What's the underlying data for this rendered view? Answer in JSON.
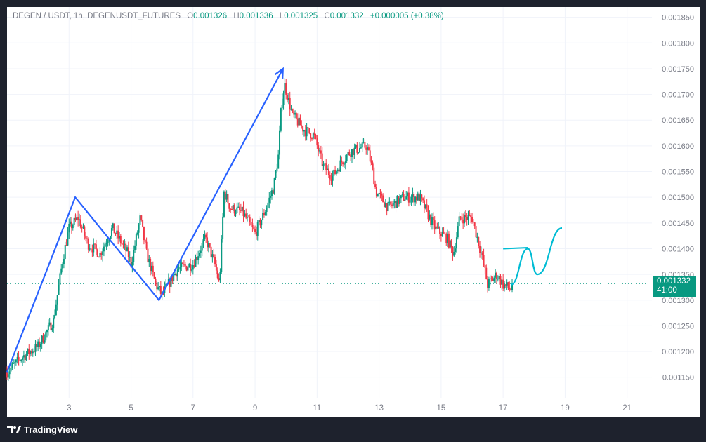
{
  "legend": {
    "symbol": "DEGEN / USDT, 1h, DEGENUSDT_FUTURES",
    "o_key": "O",
    "o_val": "0.001326",
    "h_key": "H",
    "h_val": "0.001336",
    "l_key": "L",
    "l_val": "0.001325",
    "c_key": "C",
    "c_val": "0.001332",
    "change": "+0.000005 (+0.38%)"
  },
  "price_tag": {
    "price": "0.001332",
    "countdown": "41:00"
  },
  "footer": {
    "brand": "TradingView"
  },
  "colors": {
    "up": "#089981",
    "down": "#f23645",
    "trend_line": "#2962ff",
    "projection": "#00bcd4",
    "grid": "#f0f3fa",
    "axis_text": "#787b86"
  },
  "chart_data": {
    "type": "candlestick",
    "x_axis": {
      "min": 1.0,
      "max": 21.8,
      "ticks": [
        "3",
        "5",
        "7",
        "9",
        "11",
        "13",
        "15",
        "17",
        "19",
        "21"
      ]
    },
    "y_axis": {
      "min": 0.00111,
      "max": 0.00187,
      "ticks": [
        "0.001150",
        "0.001200",
        "0.001250",
        "0.001300",
        "0.001350",
        "0.001400",
        "0.001450",
        "0.001500",
        "0.001550",
        "0.001600",
        "0.001650",
        "0.001700",
        "0.001750",
        "0.001800",
        "0.001850"
      ]
    },
    "price_path": [
      [
        1.0,
        0.00116
      ],
      [
        1.5,
        0.00119
      ],
      [
        2.0,
        0.00121
      ],
      [
        2.5,
        0.00126
      ],
      [
        2.8,
        0.00138
      ],
      [
        3.0,
        0.00144
      ],
      [
        3.3,
        0.00146
      ],
      [
        3.6,
        0.00141
      ],
      [
        4.0,
        0.00139
      ],
      [
        4.4,
        0.00144
      ],
      [
        4.9,
        0.00139
      ],
      [
        5.0,
        0.00137
      ],
      [
        5.3,
        0.00146
      ],
      [
        5.5,
        0.00139
      ],
      [
        5.8,
        0.00133
      ],
      [
        6.0,
        0.00131
      ],
      [
        6.5,
        0.00136
      ],
      [
        7.0,
        0.00137
      ],
      [
        7.4,
        0.00142
      ],
      [
        7.7,
        0.00137
      ],
      [
        7.85,
        0.00133
      ],
      [
        8.0,
        0.00151
      ],
      [
        8.2,
        0.00148
      ],
      [
        8.6,
        0.00147
      ],
      [
        9.0,
        0.00143
      ],
      [
        9.3,
        0.00147
      ],
      [
        9.6,
        0.00152
      ],
      [
        9.75,
        0.00158
      ],
      [
        9.85,
        0.00168
      ],
      [
        9.95,
        0.00172
      ],
      [
        10.2,
        0.00166
      ],
      [
        10.6,
        0.00163
      ],
      [
        10.9,
        0.00162
      ],
      [
        11.2,
        0.00156
      ],
      [
        11.5,
        0.00154
      ],
      [
        11.8,
        0.00157
      ],
      [
        12.1,
        0.00159
      ],
      [
        12.6,
        0.0016
      ],
      [
        12.8,
        0.00155
      ],
      [
        12.9,
        0.00151
      ],
      [
        13.3,
        0.00148
      ],
      [
        13.8,
        0.0015
      ],
      [
        14.3,
        0.0015
      ],
      [
        14.8,
        0.00144
      ],
      [
        15.2,
        0.00142
      ],
      [
        15.4,
        0.00139
      ],
      [
        15.6,
        0.00146
      ],
      [
        16.0,
        0.00146
      ],
      [
        16.3,
        0.00139
      ],
      [
        16.5,
        0.00133
      ],
      [
        16.8,
        0.00135
      ],
      [
        17.0,
        0.00133
      ],
      [
        17.3,
        0.00132
      ]
    ],
    "trend_line": [
      [
        1.0,
        0.00116
      ],
      [
        3.2,
        0.0015
      ],
      [
        5.9,
        0.0013
      ],
      [
        9.9,
        0.00175
      ]
    ],
    "projection": [
      [
        17.25,
        0.00133
      ],
      [
        17.8,
        0.0014
      ],
      [
        18.1,
        0.00135
      ],
      [
        18.9,
        0.00144
      ]
    ],
    "projection_flag": [
      [
        17.0,
        0.0014
      ],
      [
        17.8,
        0.001402
      ]
    ],
    "last_price": 0.001332
  }
}
